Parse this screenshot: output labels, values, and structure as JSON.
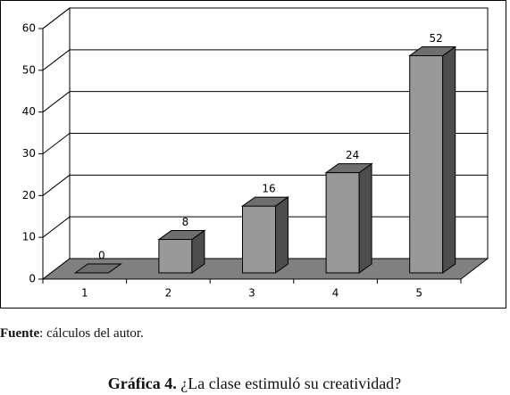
{
  "chart_data": {
    "type": "bar3d",
    "categories": [
      "1",
      "2",
      "3",
      "4",
      "5"
    ],
    "values": [
      0,
      8,
      16,
      24,
      52
    ],
    "color": "#999999",
    "ylim": [
      0,
      60
    ],
    "yticks": [
      0,
      10,
      20,
      30,
      40,
      50,
      60
    ],
    "grid": true
  },
  "source_label": "Fuente",
  "source_text": ": cálculos del autor.",
  "caption_label": "Gráfica 4.",
  "caption_text": "¿La clase estimuló su creatividad?"
}
